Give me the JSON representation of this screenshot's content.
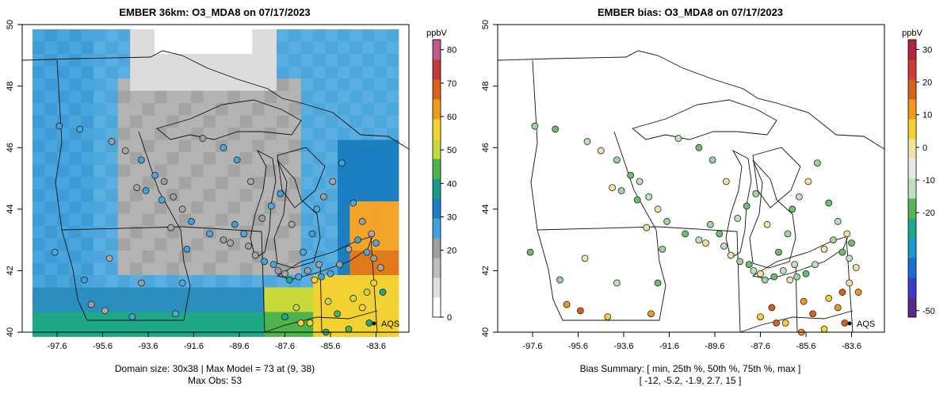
{
  "panels": [
    {
      "id": "left",
      "title": "EMBER 36km: O3_MDA8 on 07/17/2023",
      "x_ticks": [
        "-97.6",
        "-95.6",
        "-93.6",
        "-91.6",
        "-89.6",
        "-87.6",
        "-85.6",
        "-83.6"
      ],
      "y_ticks": [
        "40",
        "42",
        "44",
        "46",
        "48",
        "50"
      ],
      "legend_unit": "ppbV",
      "legend_ticks": [
        "0",
        "20",
        "30",
        "40",
        "50",
        "60",
        "70",
        "80"
      ],
      "legend_colors": [
        "#ffffff",
        "#e0e0e0",
        "#bdbdbd",
        "#9e9e9e",
        "#3fa2db",
        "#1b7fc2",
        "#1a9a8a",
        "#4db34a",
        "#c9d93c",
        "#f2d132",
        "#ee9b1d",
        "#d8621a",
        "#c03a3a",
        "#c25a8f"
      ],
      "marker_label": "AQS",
      "footer_lines": [
        "Domain size: 30x38 | Max Model = 73 at (9, 38)",
        "Max Obs: 53"
      ]
    },
    {
      "id": "right",
      "title": "EMBER bias: O3_MDA8 on 07/17/2023",
      "x_ticks": [
        "-97.6",
        "-95.6",
        "-93.6",
        "-91.6",
        "-89.6",
        "-87.6",
        "-85.6",
        "-83.6"
      ],
      "y_ticks": [
        "40",
        "42",
        "44",
        "46",
        "48",
        "50"
      ],
      "legend_unit": "ppbV",
      "legend_ticks": [
        "-50",
        "-20",
        "-10",
        "0",
        "10",
        "20",
        "30"
      ],
      "legend_colors": [
        "#5a2a8a",
        "#3b3bd0",
        "#1a6fd0",
        "#1a9ad0",
        "#1fa886",
        "#58b55a",
        "#bfe0bf",
        "#e8e8e8",
        "#efe4a0",
        "#f2d132",
        "#ee9b1d",
        "#d8621a",
        "#d23a3a",
        "#b0243d"
      ],
      "marker_label": "AQS",
      "footer_lines": [
        "Bias Summary: [ min, 25th %, 50th %, 75th %, max ]",
        "[ -12,  -5.2,  -1.9,  2.7,  15 ]"
      ]
    }
  ]
}
